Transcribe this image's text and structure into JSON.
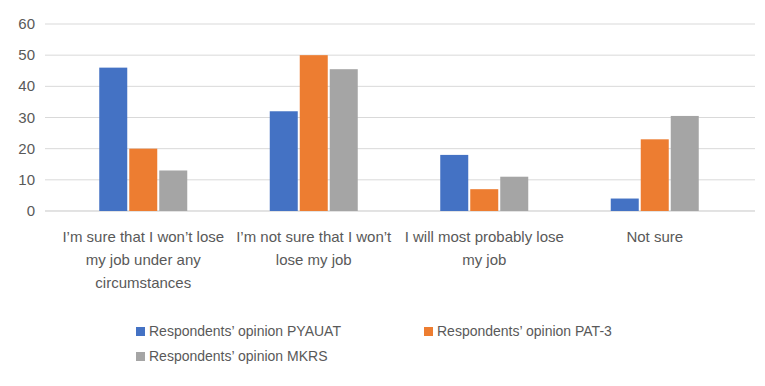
{
  "chart_data": {
    "type": "bar",
    "categories": [
      "I’m sure that I won’t lose my job under any circumstances",
      "I’m not sure that I won’t lose my job",
      "I will most probably lose my job",
      "Not sure"
    ],
    "series": [
      {
        "name": "Respondents’ opinion PYAUAT",
        "color": "#4472c4",
        "values": [
          46,
          32,
          18,
          4
        ]
      },
      {
        "name": "Respondents’ opinion PAT-3",
        "color": "#ed7d31",
        "values": [
          20,
          50,
          7,
          23
        ]
      },
      {
        "name": "Respondents’ opinion MKRS",
        "color": "#a5a5a5",
        "values": [
          13,
          45.5,
          11,
          30.5
        ]
      }
    ],
    "ylim": [
      0,
      60
    ],
    "yticks": [
      0,
      10,
      20,
      30,
      40,
      50,
      60
    ],
    "grid": true,
    "legend": "bottom"
  }
}
